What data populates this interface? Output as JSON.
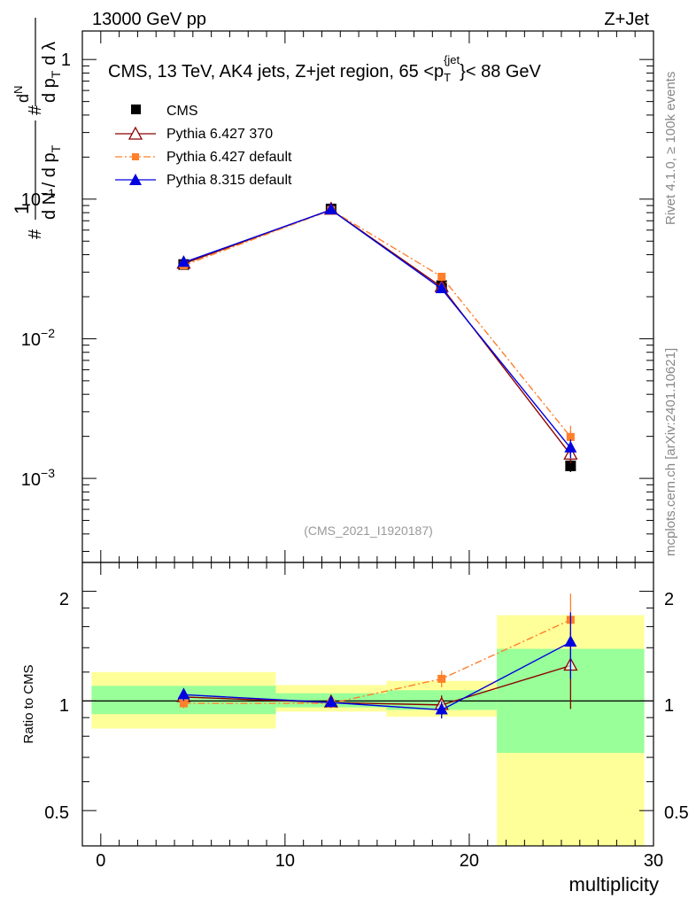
{
  "header": {
    "left": "13000 GeV pp",
    "right": "Z+Jet"
  },
  "side_labels": {
    "rivet": "Rivet 4.1.0, ≥ 100k events",
    "mcplots": "mcplots.cern.ch [arXiv:2401.10621]"
  },
  "main_plot": {
    "title": "CMS, 13 TeV, AK4 jets, Z+jet region, 65 <p",
    "title_sub": "T",
    "title_sup": "{jet",
    "title_end": "}< 88 GeV",
    "watermark": "(CMS_2021_I1920187)",
    "ylabel_parts": [
      "1",
      "d N / d p",
      "T",
      "d",
      "N",
      "d p",
      "T",
      "d λ"
    ],
    "ylabel_hash": "#",
    "y_ticks": [
      {
        "base": "1",
        "exp": "",
        "value": 1
      },
      {
        "base": "10",
        "exp": "−1",
        "value": 0.1
      },
      {
        "base": "10",
        "exp": "−2",
        "value": 0.01
      },
      {
        "base": "10",
        "exp": "−3",
        "value": 0.001
      }
    ]
  },
  "legend": [
    {
      "label": "CMS",
      "color": "#000000",
      "marker": "square"
    },
    {
      "label": "Pythia 6.427 370",
      "color": "#8b0000",
      "marker": "open-triangle"
    },
    {
      "label": "Pythia 6.427 default",
      "color": "#ff7f2a",
      "marker": "small-square"
    },
    {
      "label": "Pythia 8.315 default",
      "color": "#0000e0",
      "marker": "triangle"
    }
  ],
  "ratio_plot": {
    "ylabel": "Ratio to CMS",
    "y_ticks": [
      {
        "label": "2",
        "value": 2
      },
      {
        "label": "1",
        "value": 1
      },
      {
        "label": "0.5",
        "value": 0.5
      }
    ]
  },
  "chart_data": [
    {
      "type": "line",
      "title": "CMS, 13 TeV, AK4 jets, Z+jet region, 65 < pT jet < 88 GeV",
      "xlabel": "multiplicity",
      "ylabel": "1/N dN/dλ",
      "yscale": "log",
      "xlim": [
        -1.0,
        30.0
      ],
      "ylim": [
        0.00025,
        1.6
      ],
      "x": [
        4.5,
        12.5,
        18.5,
        25.5
      ],
      "series": [
        {
          "name": "CMS",
          "values": [
            0.034,
            0.085,
            0.024,
            0.00123
          ],
          "err": [
            0.0015,
            0.003,
            0.0012,
            0.00012
          ]
        },
        {
          "name": "Pythia 6.427 370",
          "values": [
            0.0345,
            0.084,
            0.0235,
            0.00148
          ],
          "err": [
            0.0005,
            0.0008,
            0.0004,
            0.0002
          ]
        },
        {
          "name": "Pythia 6.427 default",
          "values": [
            0.0335,
            0.0835,
            0.0278,
            0.00198
          ],
          "err": [
            0.0005,
            0.0008,
            0.0004,
            0.0004
          ]
        },
        {
          "name": "Pythia 8.315 default",
          "values": [
            0.0352,
            0.0838,
            0.0228,
            0.00165
          ],
          "err": [
            0.0005,
            0.0008,
            0.0004,
            0.00025
          ]
        }
      ]
    },
    {
      "type": "line",
      "title": "Ratio to CMS",
      "xlabel": "multiplicity",
      "ylabel": "Ratio to CMS",
      "yscale": "log",
      "xlim": [
        -1.0,
        30.0
      ],
      "ylim": [
        0.4,
        2.4
      ],
      "x_ticks": [
        0,
        10,
        20,
        30
      ],
      "x": [
        4.5,
        12.5,
        18.5,
        25.5
      ],
      "bands": [
        {
          "x0": -0.5,
          "x1": 9.5,
          "stat_lo": 0.92,
          "stat_hi": 1.1,
          "tot_lo": 0.84,
          "tot_hi": 1.2
        },
        {
          "x0": 9.5,
          "x1": 15.5,
          "stat_lo": 0.96,
          "stat_hi": 1.05,
          "tot_lo": 0.935,
          "tot_hi": 1.105
        },
        {
          "x0": 15.5,
          "x1": 21.5,
          "stat_lo": 0.945,
          "stat_hi": 1.07,
          "tot_lo": 0.905,
          "tot_hi": 1.135
        },
        {
          "x0": 21.5,
          "x1": 29.5,
          "stat_lo": 0.72,
          "stat_hi": 1.39,
          "tot_lo": 0.35,
          "tot_hi": 1.72
        }
      ],
      "series": [
        {
          "name": "Pythia 6.427 370",
          "values": [
            1.025,
            0.99,
            0.975,
            1.25
          ],
          "err": [
            0.03,
            0.03,
            0.06,
            0.3
          ]
        },
        {
          "name": "Pythia 6.427 default",
          "values": [
            0.985,
            0.985,
            1.15,
            1.67
          ],
          "err": [
            0.03,
            0.03,
            0.06,
            0.3
          ]
        },
        {
          "name": "Pythia 8.315 default",
          "values": [
            1.04,
            0.99,
            0.945,
            1.45
          ],
          "err": [
            0.04,
            0.03,
            0.05,
            0.3
          ]
        }
      ]
    }
  ]
}
